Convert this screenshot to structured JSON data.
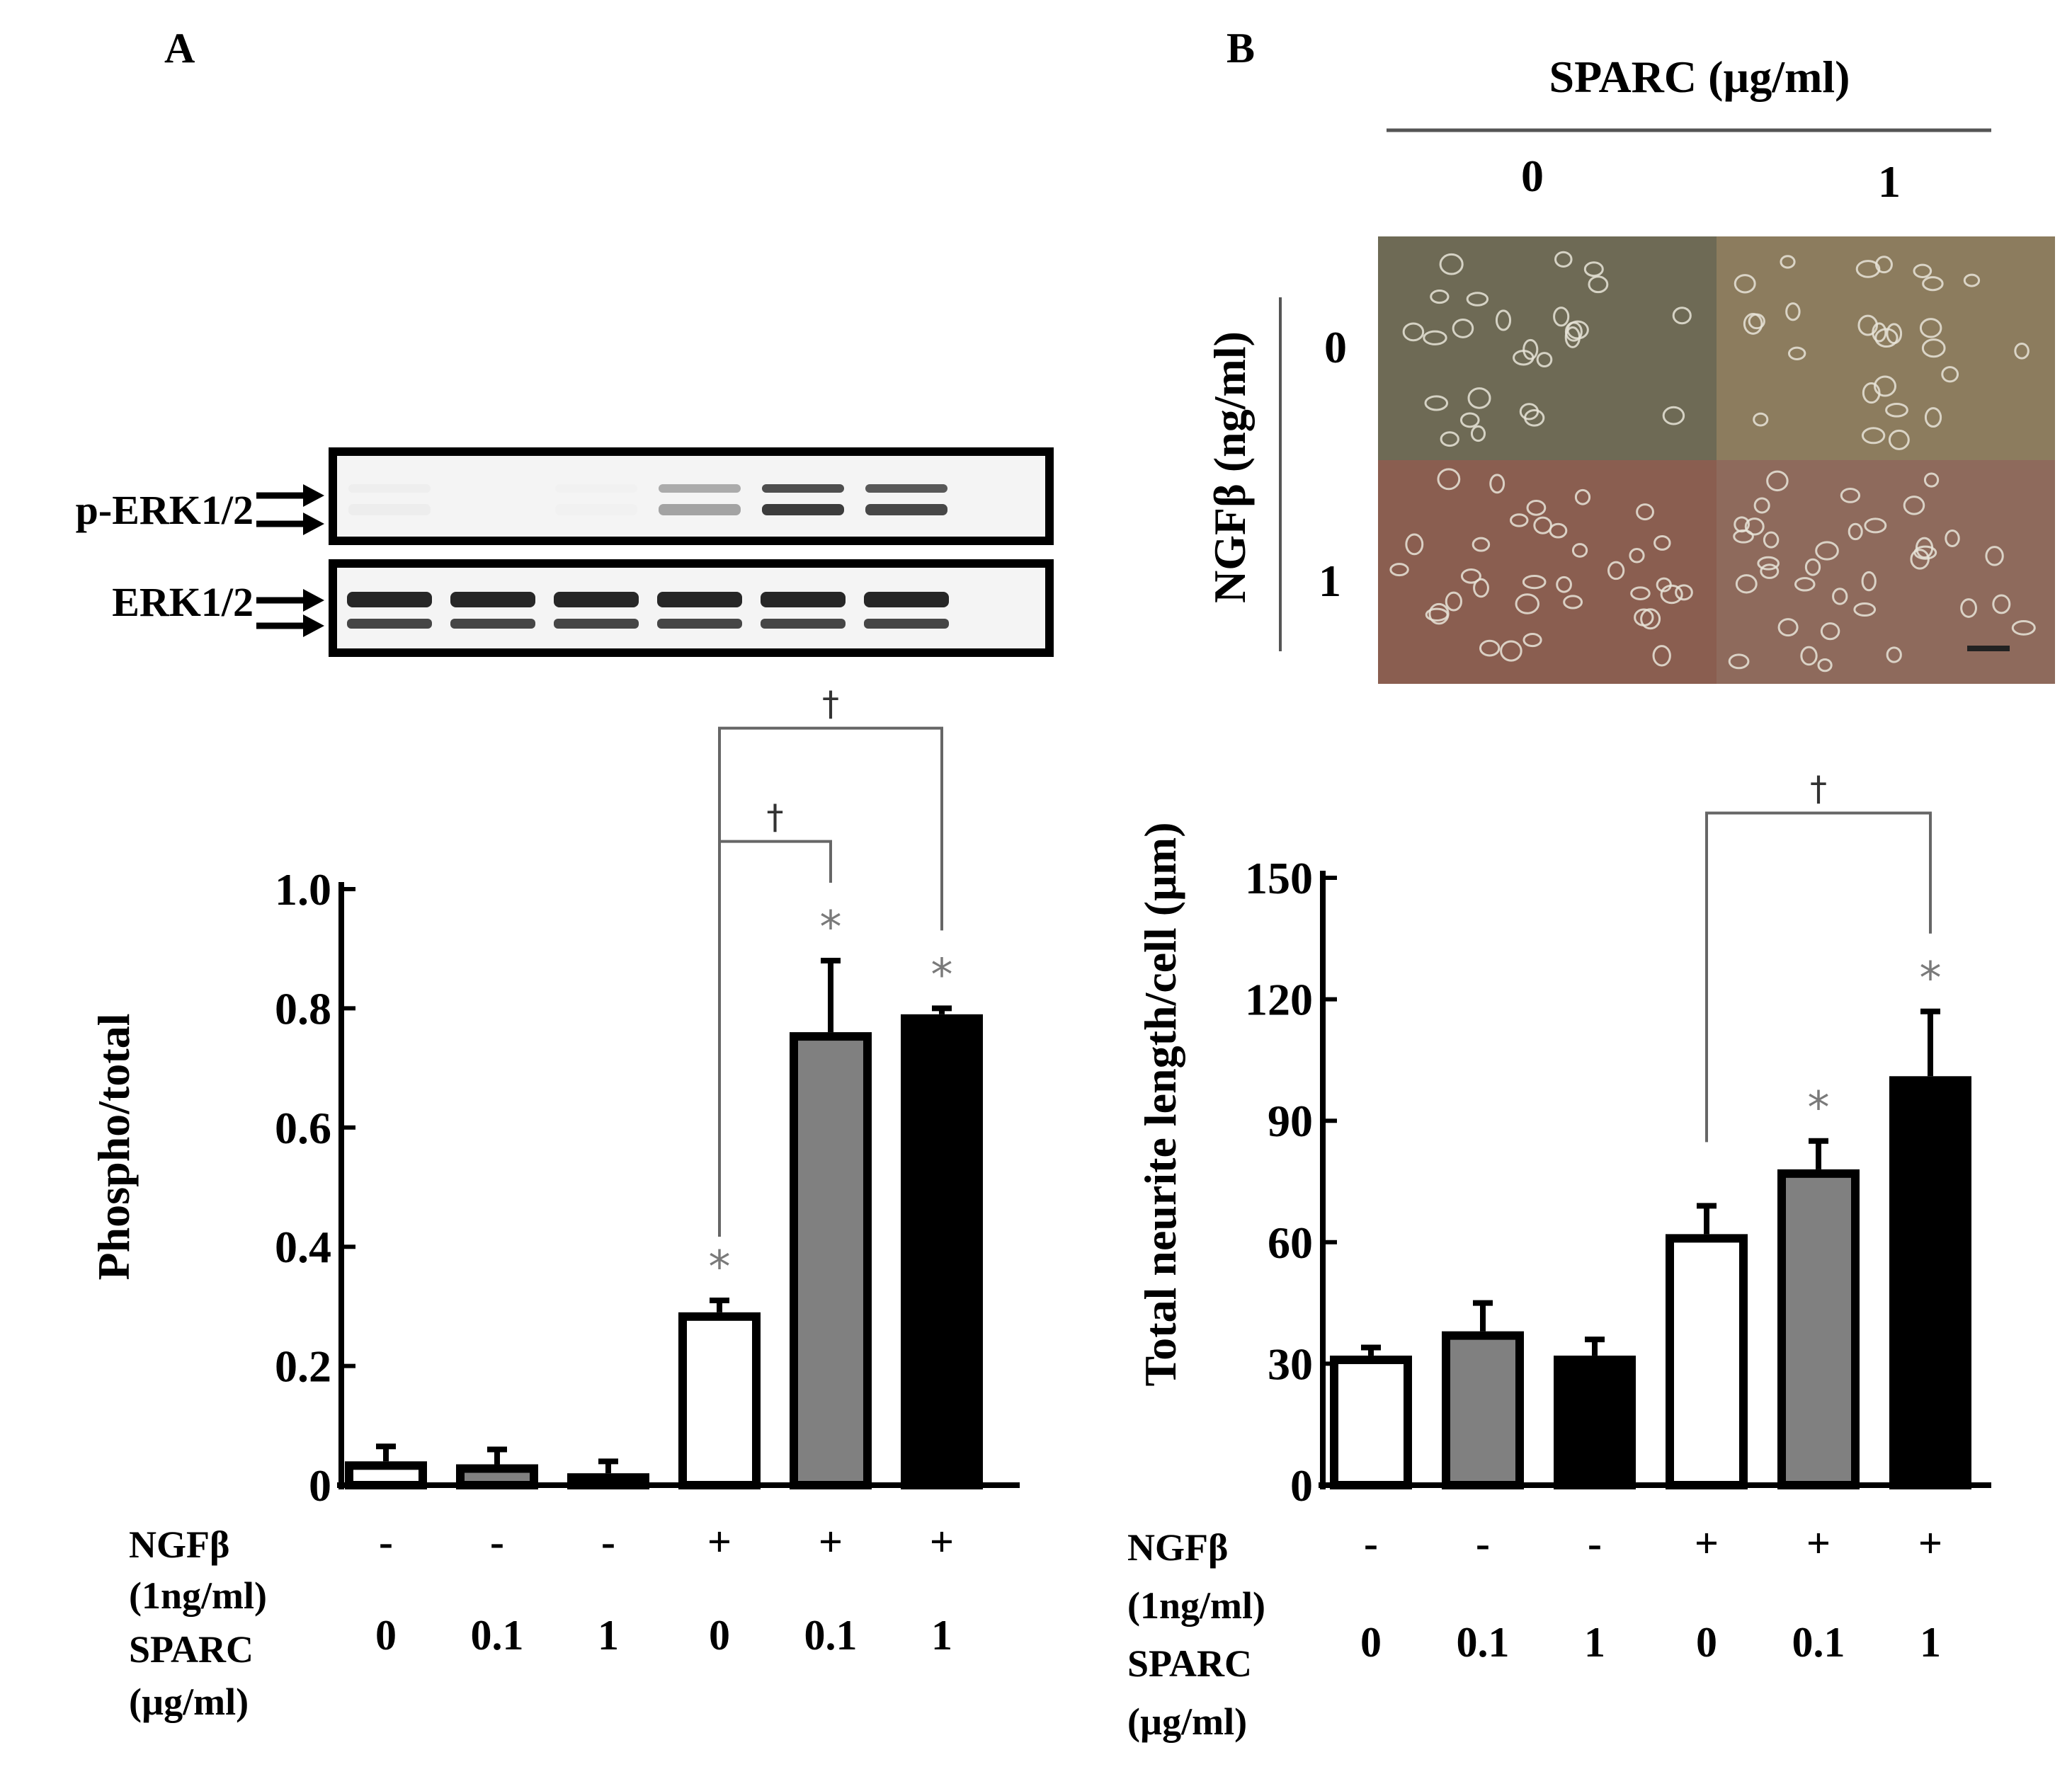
{
  "panel_a": {
    "label": "A",
    "blot": {
      "phospho_label": "p-ERK1/2",
      "total_label": "ERK1/2",
      "phospho_intensity": [
        0.08,
        0.05,
        0.06,
        0.4,
        0.85,
        0.8
      ],
      "total_intensity": [
        0.9,
        0.9,
        0.9,
        0.9,
        0.9,
        0.9
      ]
    },
    "conditions": {
      "ngf_label": "NGFβ",
      "ngf_unit": "(1ng/ml)",
      "sparc_label": "SPARC",
      "sparc_unit": "(µg/ml)",
      "ngf": [
        "-",
        "-",
        "-",
        "+",
        "+",
        "+"
      ],
      "sparc": [
        "0",
        "0.1",
        "1",
        "0",
        "0.1",
        "1"
      ]
    }
  },
  "panel_b": {
    "label": "B",
    "micrograph": {
      "header": "SPARC (µg/ml)",
      "col_labels": [
        "0",
        "1"
      ],
      "row_axis_label": "NGFβ (ng/ml)",
      "row_labels": [
        "0",
        "1"
      ],
      "tile_colors": [
        "#6e6a55",
        "#8c7c5e",
        "#8a5e50",
        "#8e6a5c"
      ]
    },
    "conditions": {
      "ngf_label": "NGFβ",
      "ngf_unit": "(1ng/ml)",
      "sparc_label": "SPARC",
      "sparc_unit": "(µg/ml)",
      "ngf": [
        "-",
        "-",
        "-",
        "+",
        "+",
        "+"
      ],
      "sparc": [
        "0",
        "0.1",
        "1",
        "0",
        "0.1",
        "1"
      ]
    }
  },
  "chart_data": [
    {
      "type": "bar",
      "ylabel": "Phospho/total",
      "categories": [
        "0",
        "0.1",
        "1",
        "0",
        "0.1",
        "1"
      ],
      "values": [
        0.04,
        0.035,
        0.02,
        0.29,
        0.76,
        0.79
      ],
      "errors": [
        0.025,
        0.025,
        0.02,
        0.02,
        0.12,
        0.01
      ],
      "bar_colors": [
        "#ffffff",
        "#808080",
        "#000000",
        "#ffffff",
        "#808080",
        "#000000"
      ],
      "ylim": [
        0,
        1.0
      ],
      "yticks": [
        0,
        0.2,
        0.4,
        0.6,
        0.8,
        1.0
      ],
      "ytick_labels": [
        "0",
        "0.2",
        "0.4",
        "0.6",
        "0.8",
        "1.0"
      ],
      "significance": [
        {
          "bar": 3,
          "label": "*"
        },
        {
          "bar": 4,
          "label": "*"
        },
        {
          "bar": 5,
          "label": "*"
        }
      ],
      "comparisons": [
        {
          "from": 3,
          "to": 4,
          "label": "†",
          "y": 1.08
        },
        {
          "from": 3,
          "to": 5,
          "label": "†",
          "y": 1.27
        }
      ]
    },
    {
      "type": "bar",
      "ylabel": "Total neurite length/cell (µm)",
      "categories": [
        "0",
        "0.1",
        "1",
        "0",
        "0.1",
        "1"
      ],
      "values": [
        32,
        38,
        32,
        62,
        78,
        101
      ],
      "errors": [
        2,
        7,
        4,
        7,
        7,
        16
      ],
      "bar_colors": [
        "#ffffff",
        "#808080",
        "#000000",
        "#ffffff",
        "#808080",
        "#000000"
      ],
      "ylim": [
        0,
        150
      ],
      "yticks": [
        0,
        30,
        60,
        90,
        120,
        150
      ],
      "ytick_labels": [
        "0",
        "30",
        "60",
        "90",
        "120",
        "150"
      ],
      "significance": [
        {
          "bar": 4,
          "label": "*"
        },
        {
          "bar": 5,
          "label": "*"
        }
      ],
      "comparisons": [
        {
          "from": 3,
          "to": 5,
          "label": "†",
          "y": 166
        }
      ]
    }
  ]
}
